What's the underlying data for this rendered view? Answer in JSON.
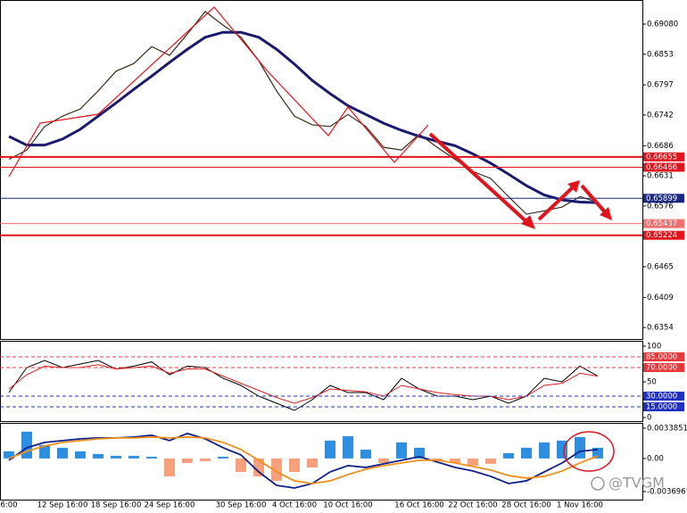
{
  "chart_data": [
    {
      "type": "line",
      "ylim": [
        0.6333,
        0.6952
      ],
      "yticks": [
        {
          "value": 0.6908,
          "label": "0.69080"
        },
        0.6853,
        0.6797,
        0.6742,
        0.6686,
        0.6631,
        0.6576,
        0.6465,
        0.6409,
        0.6354
      ],
      "series": [
        {
          "color": "#3a2a18",
          "width": 1.2,
          "values": [
            0.6661,
            0.6678,
            0.6721,
            0.674,
            0.6753,
            0.6786,
            0.6822,
            0.6836,
            0.6867,
            0.6851,
            0.689,
            0.6931,
            0.6906,
            0.6884,
            0.6841,
            0.6786,
            0.674,
            0.6724,
            0.6721,
            0.6743,
            0.6721,
            0.6683,
            0.6678,
            0.6707,
            0.6683,
            0.6661,
            0.6639,
            0.6626,
            0.6593,
            0.6561,
            0.6567,
            0.6574,
            0.6593,
            0.6583,
            null,
            null
          ]
        },
        {
          "color": "#1a1a6e",
          "width": 3,
          "values": [
            0.6703,
            0.6687,
            0.6687,
            0.6698,
            0.6716,
            0.674,
            0.6764,
            0.6789,
            0.6813,
            0.6838,
            0.6862,
            0.6884,
            0.6893,
            0.6893,
            0.6884,
            0.6862,
            0.6835,
            0.6805,
            0.6781,
            0.6759,
            0.6743,
            0.6727,
            0.6714,
            0.6703,
            0.6694,
            0.6686,
            0.6671,
            0.6654,
            0.6634,
            0.6613,
            0.6596,
            0.6587,
            0.6583,
            0.6582,
            null,
            null
          ]
        }
      ],
      "hlines": [
        {
          "value": 0.66655,
          "color": "#e0141c",
          "width": 2
        },
        {
          "value": 0.66466,
          "color": "#e0141c",
          "width": 1
        },
        {
          "value": 0.65899,
          "color": "#1a2a80",
          "width": 1
        },
        {
          "value": 0.65437,
          "color": "#f07070",
          "width": 1
        },
        {
          "value": 0.65224,
          "color": "#e0141c",
          "width": 2
        }
      ]
    },
    {
      "type": "line",
      "ylim": [
        -5,
        107.5
      ],
      "yticks": [
        100,
        50,
        0
      ],
      "dashed": true,
      "series": [
        {
          "color": "#000000",
          "width": 1,
          "values": [
            35,
            70,
            80,
            70,
            75,
            80,
            68,
            72,
            78,
            60,
            72,
            70,
            55,
            45,
            30,
            20,
            10,
            25,
            45,
            35,
            35,
            25,
            55,
            40,
            30,
            30,
            25,
            30,
            20,
            30,
            55,
            50,
            72,
            58,
            null,
            null
          ]
        },
        {
          "color": "#e02020",
          "width": 1,
          "values": [
            40,
            60,
            72,
            70,
            70,
            74,
            68,
            70,
            72,
            62,
            68,
            68,
            58,
            48,
            38,
            28,
            20,
            28,
            40,
            38,
            36,
            30,
            45,
            40,
            35,
            32,
            30,
            30,
            25,
            30,
            45,
            48,
            62,
            58,
            null,
            null
          ]
        }
      ],
      "hlines": [
        {
          "value": 85,
          "label": "85.0000",
          "color": "#e8383c",
          "width": 1
        },
        {
          "value": 70,
          "label": "70.0000",
          "color": "#e8383c",
          "width": 1
        },
        {
          "value": 30,
          "label": "30.0000",
          "color": "#2030c0",
          "width": 1
        },
        {
          "value": 15,
          "label": "15.0000",
          "color": "#2030c0",
          "width": 1
        }
      ]
    },
    {
      "type": "bar",
      "ylim": [
        -0.0046,
        0.00398
      ],
      "yticks": [
        0.0033851,
        {
          "value": 0,
          "label": "0.00"
        },
        -0.0036967
      ],
      "categories": [
        "6:00",
        null,
        null,
        "12 Sep 16:00",
        null,
        null,
        "18 Sep 16:00",
        null,
        null,
        "24 Sep 16:00",
        null,
        null,
        null,
        "30 Sep 16:00",
        null,
        null,
        "4 Oct 16:00",
        null,
        null,
        "10 Oct 16:00",
        null,
        null,
        null,
        "16 Oct 16:00",
        null,
        null,
        "22 Oct 16:00",
        null,
        null,
        "28 Oct 16:00",
        null,
        null,
        "1 Nov 16:00",
        null,
        null,
        null
      ],
      "annotation": "@TVGM",
      "series": [
        {
          "color": "#2e8fe0",
          "negative_color": "#f6a07c",
          "values": [
            0.0008,
            0.003,
            0.0015,
            0.0012,
            0.0008,
            0.0005,
            0.0003,
            0.0003,
            0.0002,
            -0.002,
            -0.0005,
            -0.0003,
            0.0002,
            -0.0015,
            -0.002,
            -0.0025,
            -0.0015,
            -0.001,
            0.002,
            0.0025,
            0.001,
            -0.0005,
            0.0018,
            0.0012,
            -0.0002,
            -0.0005,
            -0.0008,
            -0.0006,
            0.0006,
            0.0012,
            0.0018,
            0.002,
            0.0024,
            0.0012,
            null,
            null
          ]
        },
        {
          "type": "line",
          "color": "#10208a",
          "width": 1.8,
          "values": [
            -0.0002,
            0.0012,
            0.0018,
            0.002,
            0.0022,
            0.0023,
            0.0023,
            0.0024,
            0.0026,
            0.002,
            0.0028,
            0.0022,
            0.0012,
            0.0004,
            -0.0015,
            -0.003,
            -0.0033,
            -0.0028,
            -0.0015,
            -0.0008,
            -0.001,
            -0.0006,
            -0.0002,
            0.0002,
            -0.0004,
            -0.001,
            -0.0014,
            -0.002,
            -0.0028,
            -0.0025,
            -0.0015,
            -0.0005,
            0.0008,
            0.001,
            null,
            null
          ]
        },
        {
          "type": "line",
          "color": "#f0901c",
          "width": 1.8,
          "values": [
            0.0,
            0.0008,
            0.0014,
            0.0018,
            0.002,
            0.0022,
            0.0023,
            0.0023,
            0.0024,
            0.0023,
            0.0024,
            0.0023,
            0.0018,
            0.001,
            -0.0002,
            -0.0015,
            -0.0025,
            -0.0028,
            -0.0025,
            -0.0018,
            -0.0012,
            -0.0008,
            -0.0005,
            -0.0002,
            -0.0002,
            -0.0005,
            -0.0009,
            -0.0013,
            -0.0019,
            -0.0022,
            -0.002,
            -0.0014,
            -0.0005,
            0.0003,
            null,
            null
          ]
        }
      ]
    }
  ]
}
